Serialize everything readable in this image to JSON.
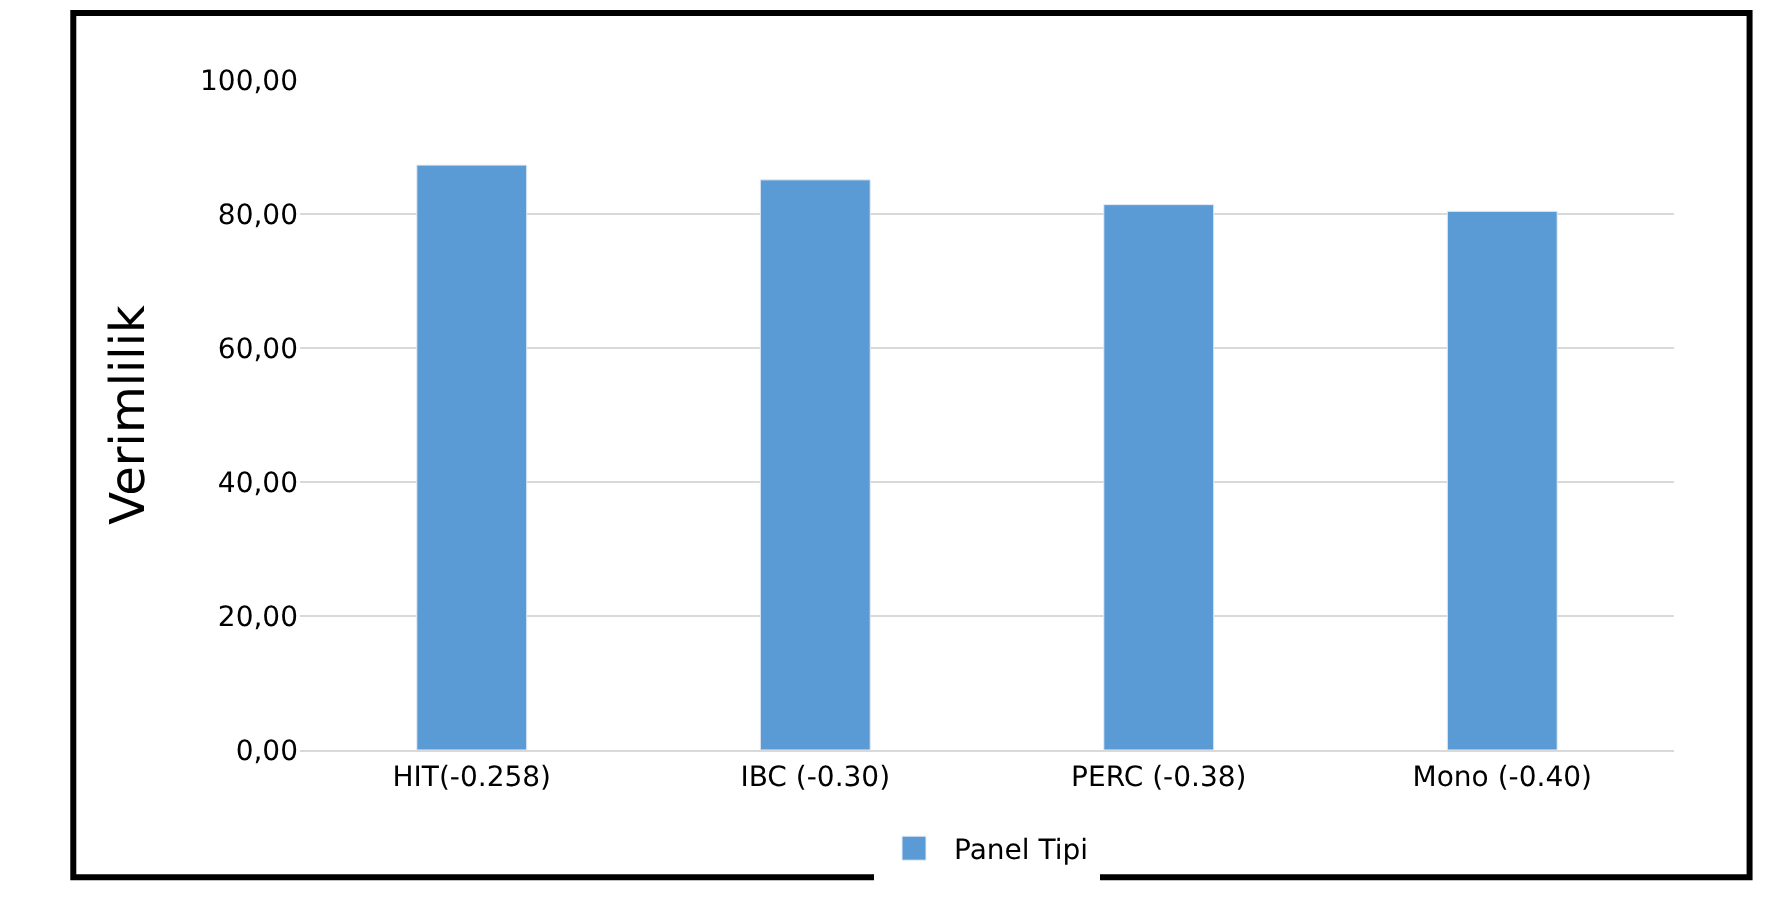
{
  "chart_data": {
    "type": "bar",
    "ylabel": "Verimlilik",
    "categories": [
      "HIT(-0.258)",
      "IBC (-0.30)",
      "PERC (-0.38)",
      "Mono (-0.40)"
    ],
    "series": [
      {
        "name": "Panel Tipi",
        "color": "#5b9bd5",
        "values": [
          87.3,
          85.1,
          81.4,
          80.4
        ]
      }
    ],
    "ylim": [
      0,
      100
    ],
    "yticks": [
      {
        "value": 0,
        "label": "0,00"
      },
      {
        "value": 20,
        "label": "20,00"
      },
      {
        "value": 40,
        "label": "40,00"
      },
      {
        "value": 60,
        "label": "60,00"
      },
      {
        "value": 80,
        "label": "80,00"
      },
      {
        "value": 100,
        "label": "100,00"
      }
    ],
    "grid": "y",
    "legend": "bottom"
  }
}
